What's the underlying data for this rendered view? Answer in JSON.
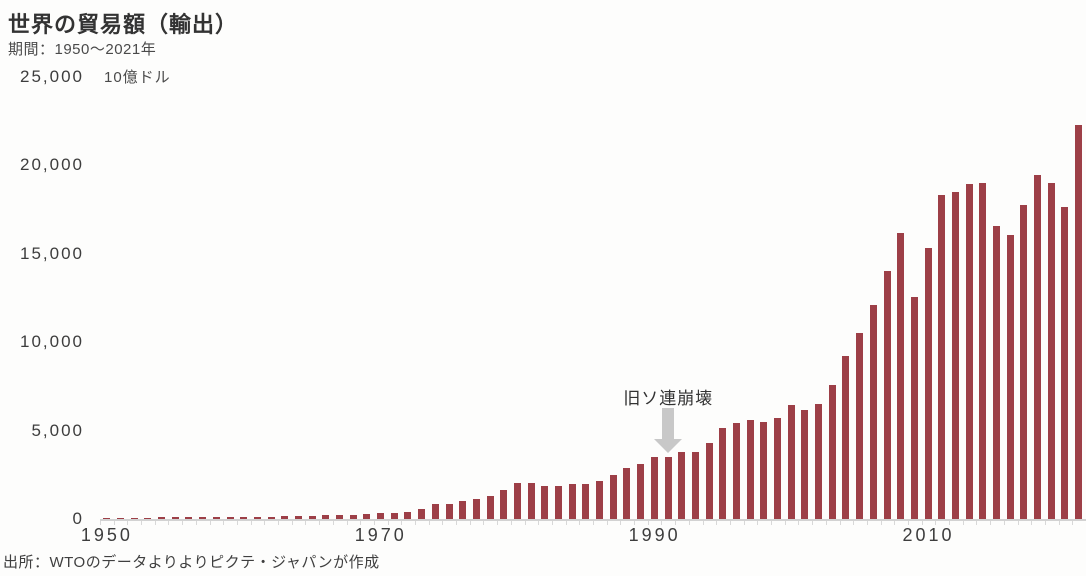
{
  "header": {
    "title": "世界の貿易額（輸出）",
    "period": "期間：1950～2021年",
    "unit_label": "10億ドル"
  },
  "footer": {
    "source": "出所：WTOのデータよりよりピクテ・ジャパンが作成"
  },
  "annotation": {
    "label": "旧ソ連崩壊",
    "target_year": 1991
  },
  "colors": {
    "bar": "#9d3f47",
    "axis_line": "#d2d2d2",
    "tick": "#d8d8d8",
    "arrow": "#c8c8c8"
  },
  "chart_data": {
    "type": "bar",
    "title": "世界の貿易額（輸出）",
    "subtitle": "期間：1950～2021年",
    "ylabel": "10億ドル",
    "source": "出所：WTOのデータよりよりピクテ・ジャパンが作成",
    "annotation_text": "旧ソ連崩壊",
    "annotation_year": 1991,
    "ylim": [
      0,
      25000
    ],
    "grid": false,
    "legend": false,
    "y_tick_values": [
      0,
      5000,
      10000,
      15000,
      20000,
      25000
    ],
    "y_tick_labels": [
      "0",
      "5,000",
      "10,000",
      "15,000",
      "20,000",
      "25,000"
    ],
    "x_tick_years": [
      1950,
      1970,
      1990,
      2010
    ],
    "years": [
      1950,
      1951,
      1952,
      1953,
      1954,
      1955,
      1956,
      1957,
      1958,
      1959,
      1960,
      1961,
      1962,
      1963,
      1964,
      1965,
      1966,
      1967,
      1968,
      1969,
      1970,
      1971,
      1972,
      1973,
      1974,
      1975,
      1976,
      1977,
      1978,
      1979,
      1980,
      1981,
      1982,
      1983,
      1984,
      1985,
      1986,
      1987,
      1988,
      1989,
      1990,
      1991,
      1992,
      1993,
      1994,
      1995,
      1996,
      1997,
      1998,
      1999,
      2000,
      2001,
      2002,
      2003,
      2004,
      2005,
      2006,
      2007,
      2008,
      2009,
      2010,
      2011,
      2012,
      2013,
      2014,
      2015,
      2016,
      2017,
      2018,
      2019,
      2020,
      2021
    ],
    "values": [
      62,
      84,
      84,
      85,
      87,
      95,
      104,
      112,
      108,
      116,
      130,
      134,
      142,
      155,
      173,
      187,
      204,
      215,
      240,
      273,
      318,
      354,
      418,
      578,
      840,
      877,
      991,
      1128,
      1303,
      1659,
      2049,
      2010,
      1883,
      1846,
      1956,
      1954,
      2138,
      2516,
      2869,
      3098,
      3495,
      3510,
      3766,
      3782,
      4326,
      5168,
      5403,
      5591,
      5501,
      5712,
      6452,
      6191,
      6492,
      7586,
      9218,
      10508,
      12130,
      14023,
      16160,
      12555,
      15301,
      18338,
      18496,
      18948,
      19000,
      16558,
      16040,
      17740,
      19475,
      19015,
      17650,
      22284
    ]
  }
}
